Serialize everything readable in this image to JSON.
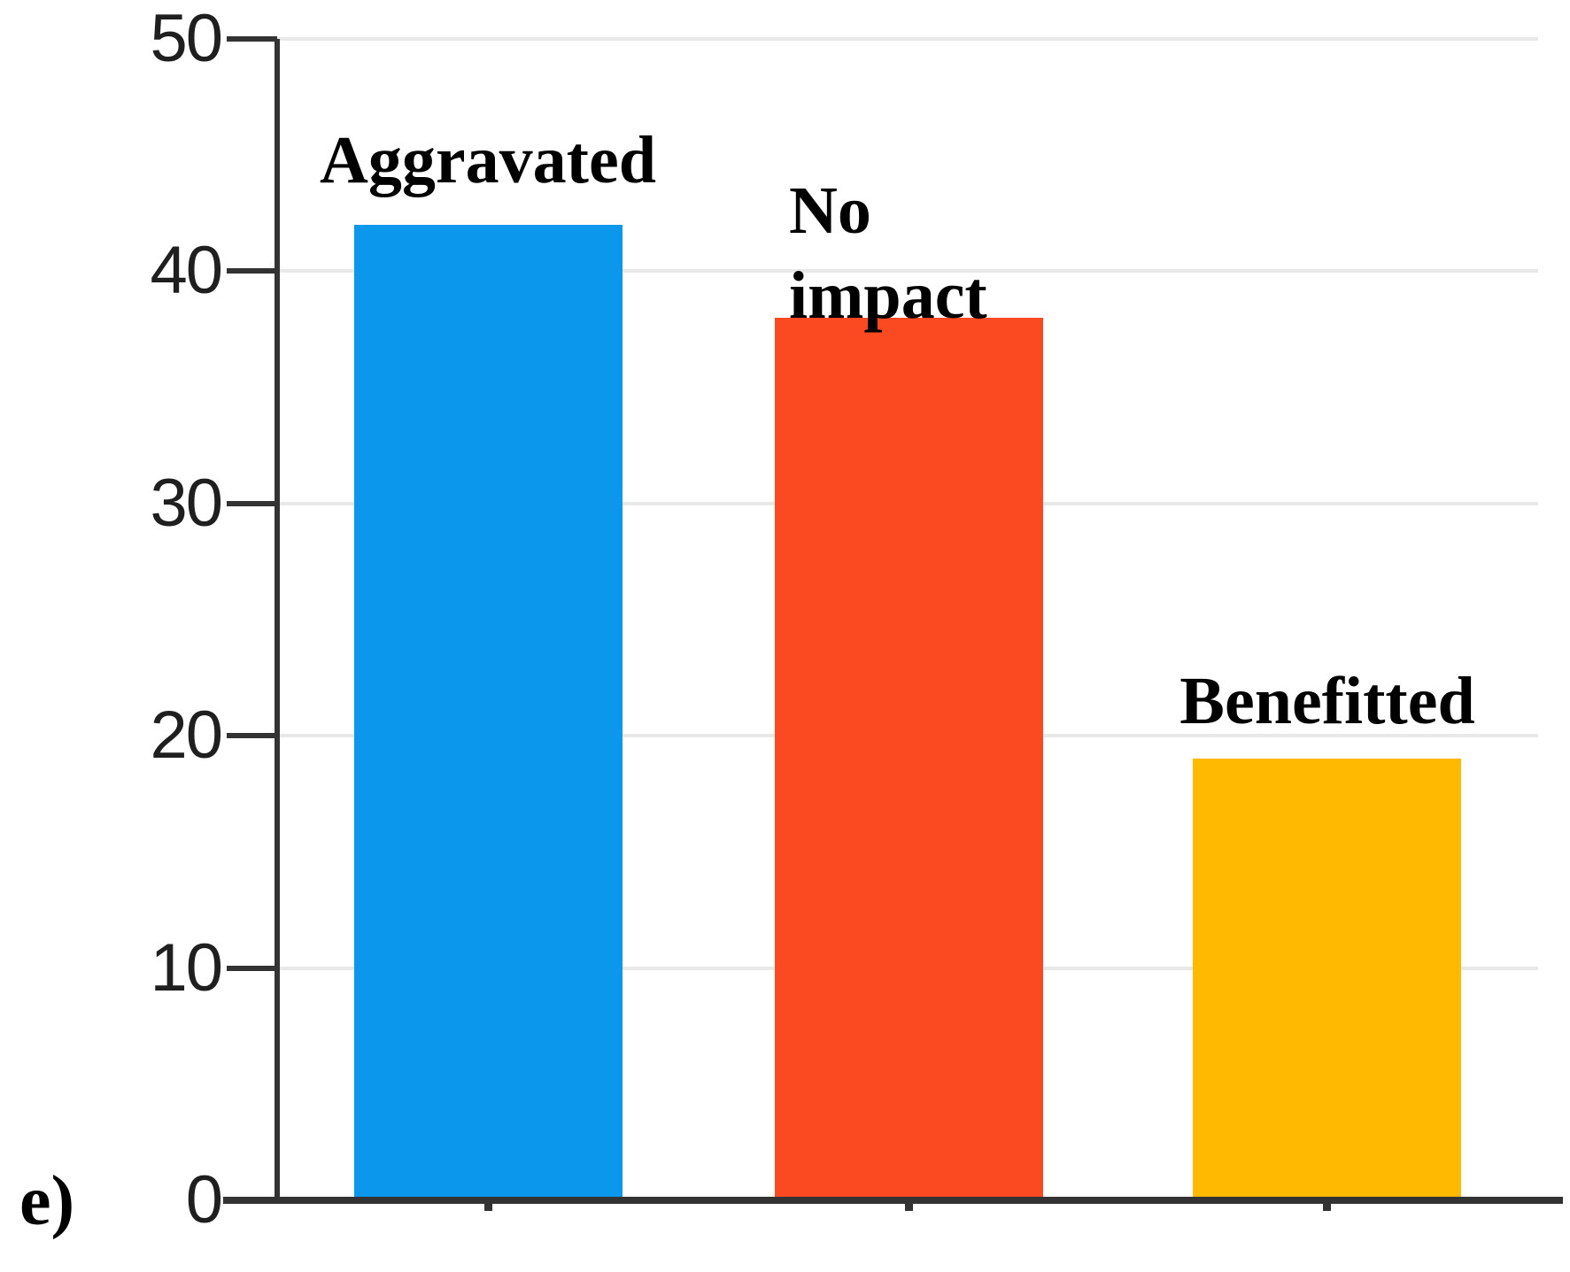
{
  "figure_label": "e)",
  "chart_data": {
    "type": "bar",
    "categories": [
      "Aggravated",
      "No impact",
      "Benefitted"
    ],
    "values": [
      42,
      38,
      19
    ],
    "bar_colors": [
      "#0A97EC",
      "#FB4A22",
      "#FFBA00"
    ],
    "title": "",
    "xlabel": "",
    "ylabel": "",
    "ylim": [
      0,
      50
    ],
    "yticks": [
      0,
      10,
      20,
      30,
      40,
      50
    ],
    "grid": true,
    "legend": "none",
    "bar_label_position": "above-bars"
  },
  "colors": {
    "axis": "#333333",
    "gridline": "#E8E8E8",
    "tick_label": "#1f1f1f",
    "bar_label": "#000000",
    "background": "#FFFFFF"
  }
}
